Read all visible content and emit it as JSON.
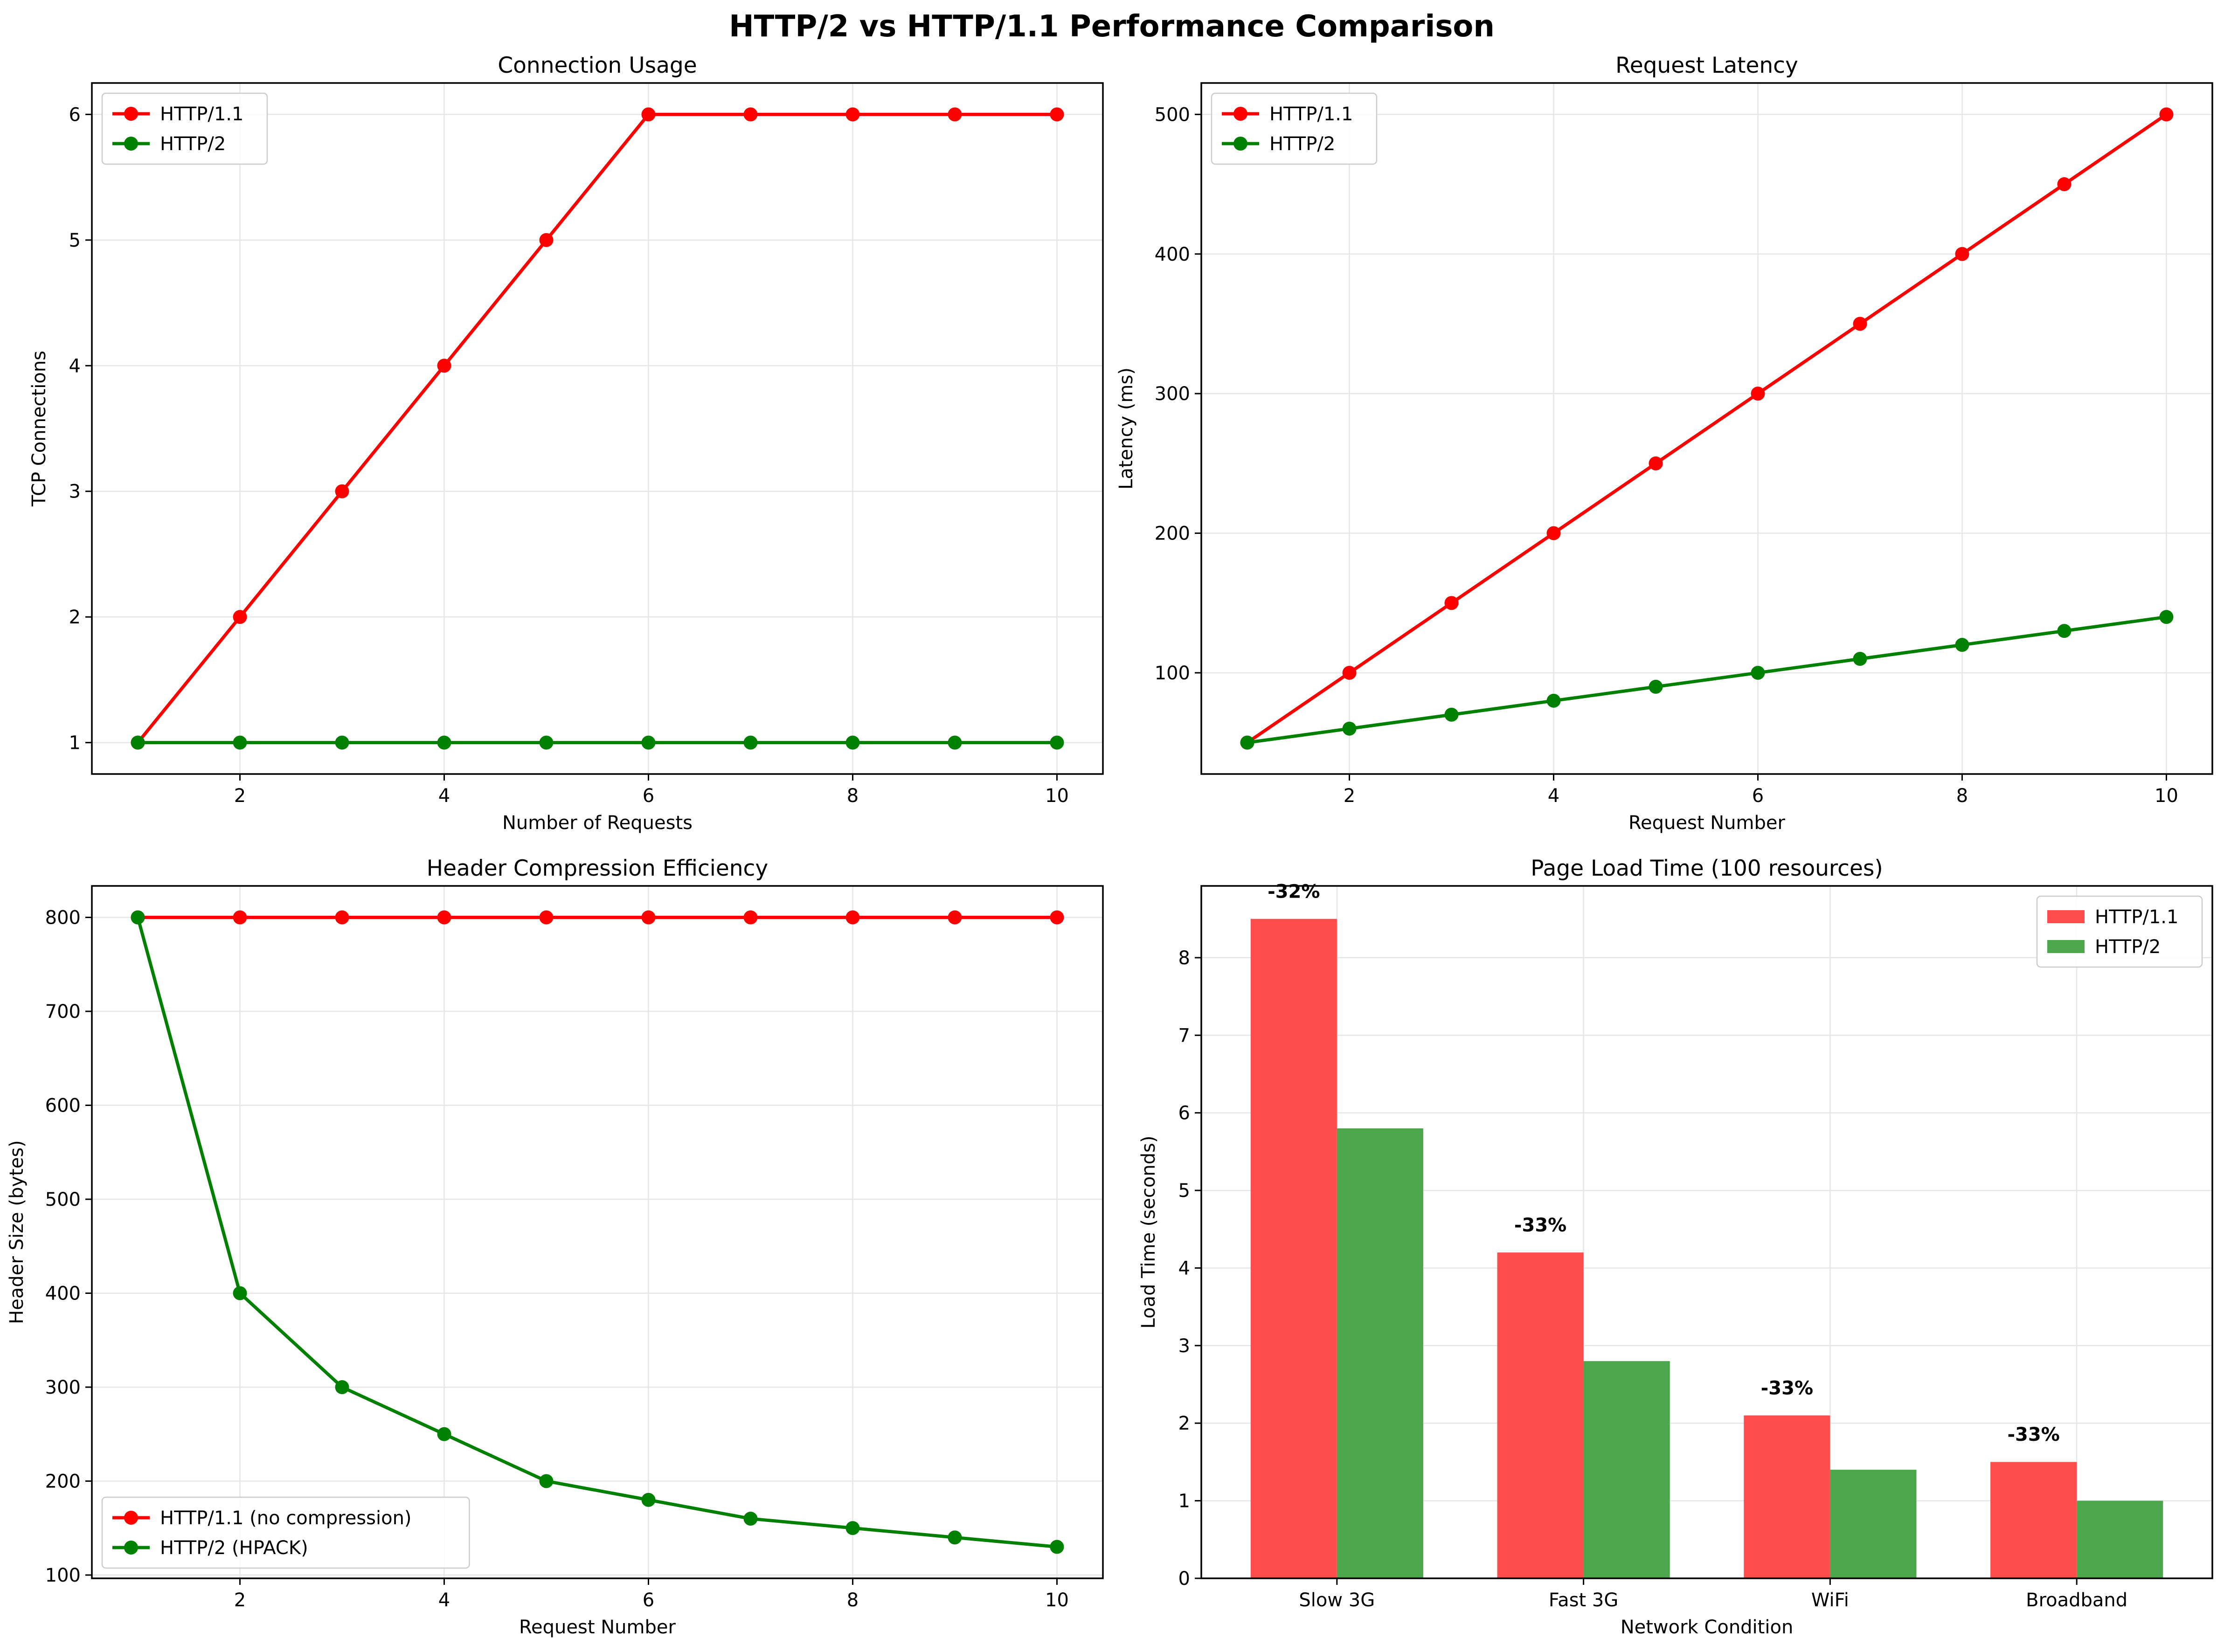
{
  "suptitle": "HTTP/2 vs HTTP/1.1 Performance Comparison",
  "colors": {
    "http11": "#ff0000",
    "http2": "#008000",
    "bar11": "#ff4c4c",
    "bar2": "#4ca64c",
    "grid": "#e6e6e6"
  },
  "chart_data": [
    {
      "type": "line",
      "title": "Connection Usage",
      "xlabel": "Number of Requests",
      "ylabel": "TCP Connections",
      "x": [
        1,
        2,
        3,
        4,
        5,
        6,
        7,
        8,
        9,
        10
      ],
      "xlim": [
        0.55,
        10.45
      ],
      "ylim": [
        0.75,
        6.25
      ],
      "xticks": [
        2,
        4,
        6,
        8,
        10
      ],
      "yticks": [
        1,
        2,
        3,
        4,
        5,
        6
      ],
      "grid": true,
      "legend_loc": "upper-left",
      "series": [
        {
          "name": "HTTP/1.1",
          "color": "#ff0000",
          "values": [
            1,
            2,
            3,
            4,
            5,
            6,
            6,
            6,
            6,
            6
          ]
        },
        {
          "name": "HTTP/2",
          "color": "#008000",
          "values": [
            1,
            1,
            1,
            1,
            1,
            1,
            1,
            1,
            1,
            1
          ]
        }
      ]
    },
    {
      "type": "line",
      "title": "Request Latency",
      "xlabel": "Request Number",
      "ylabel": "Latency (ms)",
      "x": [
        1,
        2,
        3,
        4,
        5,
        6,
        7,
        8,
        9,
        10
      ],
      "xlim": [
        0.55,
        10.45
      ],
      "ylim": [
        27.5,
        522.5
      ],
      "xticks": [
        2,
        4,
        6,
        8,
        10
      ],
      "yticks": [
        100,
        200,
        300,
        400,
        500
      ],
      "grid": true,
      "legend_loc": "upper-left",
      "series": [
        {
          "name": "HTTP/1.1",
          "color": "#ff0000",
          "values": [
            50,
            100,
            150,
            200,
            250,
            300,
            350,
            400,
            450,
            500
          ]
        },
        {
          "name": "HTTP/2",
          "color": "#008000",
          "values": [
            50,
            60,
            70,
            80,
            90,
            100,
            110,
            120,
            130,
            140
          ]
        }
      ]
    },
    {
      "type": "line",
      "title": "Header Compression Efficiency",
      "xlabel": "Request Number",
      "ylabel": "Header Size (bytes)",
      "x": [
        1,
        2,
        3,
        4,
        5,
        6,
        7,
        8,
        9,
        10
      ],
      "xlim": [
        0.55,
        10.45
      ],
      "ylim": [
        96.5,
        833.5
      ],
      "xticks": [
        2,
        4,
        6,
        8,
        10
      ],
      "yticks": [
        100,
        200,
        300,
        400,
        500,
        600,
        700,
        800
      ],
      "grid": true,
      "legend_loc": "lower-left",
      "series": [
        {
          "name": "HTTP/1.1 (no compression)",
          "color": "#ff0000",
          "values": [
            800,
            800,
            800,
            800,
            800,
            800,
            800,
            800,
            800,
            800
          ]
        },
        {
          "name": "HTTP/2 (HPACK)",
          "color": "#008000",
          "values": [
            800,
            400,
            300,
            250,
            200,
            180,
            160,
            150,
            140,
            130
          ]
        }
      ]
    },
    {
      "type": "bar",
      "title": "Page Load Time (100 resources)",
      "xlabel": "Network Condition",
      "ylabel": "Load Time (seconds)",
      "categories": [
        "Slow 3G",
        "Fast 3G",
        "WiFi",
        "Broadband"
      ],
      "ylim": [
        0,
        8.925
      ],
      "yticks": [
        0,
        1,
        2,
        3,
        4,
        5,
        6,
        7,
        8
      ],
      "grid": true,
      "legend_loc": "upper-right",
      "series": [
        {
          "name": "HTTP/1.1",
          "color": "#ff4c4c",
          "values": [
            8.5,
            4.2,
            2.1,
            1.5
          ]
        },
        {
          "name": "HTTP/2",
          "color": "#4ca64c",
          "values": [
            5.8,
            2.8,
            1.4,
            1.0
          ]
        }
      ],
      "annotations": [
        "-32%",
        "-33%",
        "-33%",
        "-33%"
      ]
    }
  ]
}
